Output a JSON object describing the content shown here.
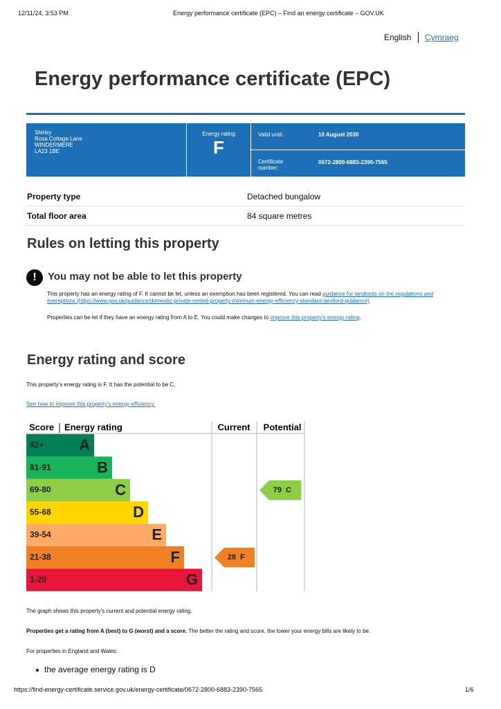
{
  "print_header": {
    "datetime": "12/11/24, 3:53 PM",
    "page_title": "Energy performance certificate (EPC) – Find an energy certificate – GOV.UK"
  },
  "language": {
    "english": "English",
    "cymraeg": "Cymraeg"
  },
  "title": "Energy performance certificate (EPC)",
  "summary": {
    "address": [
      "Shirley",
      "Rosa Cottage Lane",
      "WINDERMERE",
      "LA23 1BE"
    ],
    "rating_label": "Energy rating",
    "rating": "F",
    "valid_label": "Valid until:",
    "valid_value": "10 August 2030",
    "cert_label": "Certificate number:",
    "cert_value": "0672-2800-6883-2390-7565"
  },
  "property": [
    {
      "label": "Property type",
      "value": "Detached bungalow"
    },
    {
      "label": "Total floor area",
      "value": "84 square metres"
    }
  ],
  "letting": {
    "heading": "Rules on letting this property",
    "warning_icon": "!",
    "warning": "You may not be able to let this property",
    "para1": [
      "This property has an energy rating of F. It cannot be let, unless an exemption has been registered. You can read ",
      "guidance for landlords on the regulations and exemptions (https://www.gov.uk/guidance/domestic-private-rented-property-minimum-energy-efficiency-standard-landlord-guidance)",
      "."
    ],
    "para2": [
      "Properties can be let if they have an energy rating from A to E. You could make changes to ",
      "improve this property's energy rating",
      "."
    ]
  },
  "energy": {
    "heading": "Energy rating and score",
    "intro": "This property's energy rating is F. It has the potential to be C.",
    "link": "See how to improve this property's energy efficiency.",
    "chart": {
      "headers": [
        "Score",
        "Energy rating",
        "Current",
        "Potential"
      ],
      "bands": [
        {
          "score": "92+",
          "letter": "A",
          "color": "#008054"
        },
        {
          "score": "81-91",
          "letter": "B",
          "color": "#19b459"
        },
        {
          "score": "69-80",
          "letter": "C",
          "color": "#8dce46"
        },
        {
          "score": "55-68",
          "letter": "D",
          "color": "#ffd500"
        },
        {
          "score": "39-54",
          "letter": "E",
          "color": "#fcaa65"
        },
        {
          "score": "21-38",
          "letter": "F",
          "color": "#ef8023"
        },
        {
          "score": "1-20",
          "letter": "G",
          "color": "#e9153b"
        }
      ],
      "current": {
        "score": 28,
        "letter": "F"
      },
      "potential": {
        "score": 79,
        "letter": "C"
      }
    },
    "graph_note": "The graph shows this property's current and potential energy rating.",
    "scale_bold": "Properties get a rating from A (best) to G (worst) and a score.",
    "scale_rest": " The better the rating and score, the lower your energy bills are likely to be.",
    "england_wales": "For properties in England and Wales:",
    "bullet": "the average energy rating is D"
  },
  "print_footer": {
    "url": "https://find-energy-certificate.service.gov.uk/energy-certificate/0672-2800-6883-2390-7565",
    "page": "1/6"
  }
}
